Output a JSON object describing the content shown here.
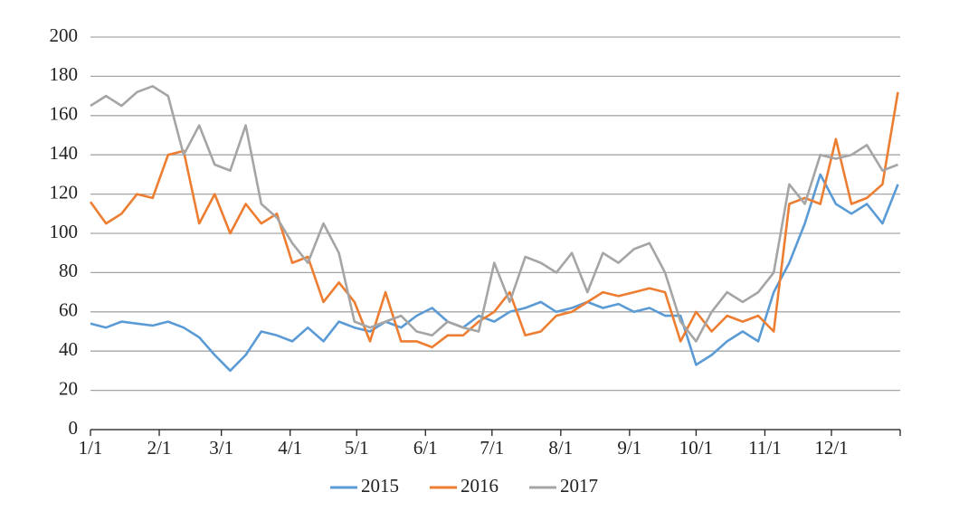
{
  "chart_data": {
    "type": "line",
    "x": [
      0,
      7,
      14,
      21,
      28,
      35,
      42,
      49,
      56,
      63,
      70,
      77,
      84,
      91,
      98,
      105,
      112,
      119,
      126,
      133,
      140,
      147,
      154,
      161,
      168,
      175,
      182,
      189,
      196,
      203,
      210,
      217,
      224,
      231,
      238,
      245,
      252,
      259,
      266,
      273,
      280,
      287,
      294,
      301,
      308,
      315,
      322,
      329,
      336,
      343,
      350,
      357,
      364
    ],
    "series": [
      {
        "name": "2015",
        "color": "#5b9bd5",
        "values": [
          54,
          52,
          55,
          54,
          53,
          55,
          52,
          47,
          38,
          30,
          38,
          50,
          48,
          45,
          52,
          45,
          55,
          52,
          50,
          55,
          52,
          58,
          62,
          55,
          52,
          58,
          55,
          60,
          62,
          65,
          60,
          62,
          65,
          62,
          64,
          60,
          62,
          58,
          58,
          33,
          38,
          45,
          50,
          45,
          70,
          85,
          105,
          130,
          115,
          110,
          115,
          105,
          125
        ]
      },
      {
        "name": "2016",
        "color": "#ed7d31",
        "values": [
          116,
          105,
          110,
          120,
          118,
          140,
          142,
          105,
          120,
          100,
          115,
          105,
          110,
          85,
          88,
          65,
          75,
          65,
          45,
          70,
          45,
          45,
          42,
          48,
          48,
          55,
          60,
          70,
          48,
          50,
          58,
          60,
          65,
          70,
          68,
          70,
          72,
          70,
          45,
          60,
          50,
          58,
          55,
          58,
          50,
          115,
          118,
          115,
          148,
          115,
          118,
          125,
          172
        ]
      },
      {
        "name": "2017",
        "color": "#a5a5a5",
        "values": [
          165,
          170,
          165,
          172,
          175,
          170,
          140,
          155,
          135,
          132,
          155,
          115,
          108,
          95,
          85,
          105,
          90,
          55,
          52,
          55,
          58,
          50,
          48,
          55,
          52,
          50,
          85,
          65,
          88,
          85,
          80,
          90,
          70,
          90,
          85,
          92,
          95,
          80,
          55,
          45,
          60,
          70,
          65,
          70,
          80,
          125,
          115,
          140,
          138,
          140,
          145,
          132,
          135
        ]
      }
    ],
    "xlim": [
      0,
      365
    ],
    "xticks": [
      {
        "value": 0,
        "label": "1/1"
      },
      {
        "value": 31,
        "label": "2/1"
      },
      {
        "value": 59,
        "label": "3/1"
      },
      {
        "value": 90,
        "label": "4/1"
      },
      {
        "value": 120,
        "label": "5/1"
      },
      {
        "value": 151,
        "label": "6/1"
      },
      {
        "value": 181,
        "label": "7/1"
      },
      {
        "value": 212,
        "label": "8/1"
      },
      {
        "value": 243,
        "label": "9/1"
      },
      {
        "value": 273,
        "label": "10/1"
      },
      {
        "value": 304,
        "label": "11/1"
      },
      {
        "value": 334,
        "label": "12/1"
      }
    ],
    "ylim": [
      0,
      200
    ],
    "yticks": [
      0,
      20,
      40,
      60,
      80,
      100,
      120,
      140,
      160,
      180,
      200
    ],
    "grid": true,
    "legend": "bottom"
  }
}
